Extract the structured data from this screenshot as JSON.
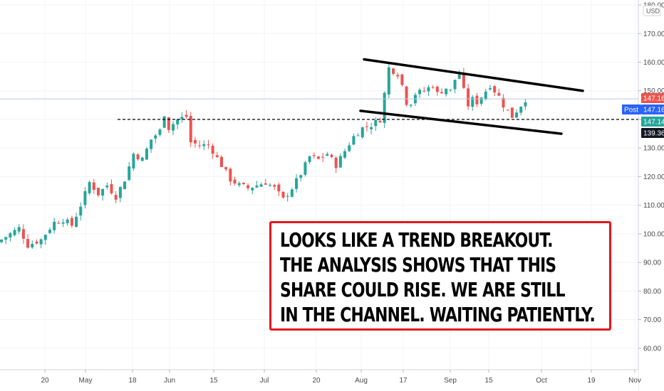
{
  "chart_data": {
    "type": "candlestick",
    "currency": "USD",
    "ylim": [
      55,
      181
    ],
    "y_ticks": [
      60,
      70,
      80,
      90,
      100,
      110,
      120,
      130,
      140,
      150,
      160,
      170,
      180
    ],
    "y_tick_labels": [
      "60.00",
      "70.00",
      "80.00",
      "90.00",
      "100.00",
      "110.00",
      "120.00",
      "130.00",
      "140.00",
      "150.00",
      "160.00",
      "170.00",
      "180.00"
    ],
    "x_tick_labels": [
      "20",
      "May",
      "18",
      "Jun",
      "15",
      "Jul",
      "20",
      "Aug",
      "17",
      "Sep",
      "15",
      "Oct",
      "19",
      "Nov"
    ],
    "price_labels": [
      {
        "text": "147.16",
        "value": 147.16,
        "color": "#ef5350"
      },
      {
        "text": "Post",
        "value": 147.16,
        "color": "#2962ff"
      },
      {
        "text": "147.16",
        "value": 147.16,
        "color": "#2962ff"
      },
      {
        "text": "147.14",
        "value": 147.14,
        "color": "#26a69a"
      },
      {
        "text": "139.36",
        "value": 139.36,
        "color": "#131722"
      }
    ],
    "horizontal_line": {
      "value": 140,
      "style": "dashed"
    },
    "current_line": {
      "value": 147.16
    },
    "trendlines": [
      {
        "from": {
          "x": "2020-08-03",
          "y": 161
        },
        "to": {
          "x": "2020-10-16",
          "y": 150
        }
      },
      {
        "from": {
          "x": "2020-08-01",
          "y": 143
        },
        "to": {
          "x": "2020-10-14",
          "y": 135
        }
      }
    ],
    "up_color": "#26a69a",
    "down_color": "#ef5350",
    "close_anchors": [
      [
        0,
        98
      ],
      [
        4,
        102
      ],
      [
        6,
        96
      ],
      [
        9,
        98
      ],
      [
        12,
        104
      ],
      [
        14,
        105
      ],
      [
        16,
        103
      ],
      [
        18,
        110
      ],
      [
        20,
        118
      ],
      [
        22,
        114
      ],
      [
        24,
        117
      ],
      [
        26,
        113
      ],
      [
        28,
        119
      ],
      [
        30,
        128
      ],
      [
        32,
        126
      ],
      [
        34,
        133
      ],
      [
        36,
        136
      ],
      [
        37,
        142
      ],
      [
        38,
        137
      ],
      [
        40,
        140
      ],
      [
        42,
        141
      ],
      [
        43,
        132
      ],
      [
        45,
        131
      ],
      [
        47,
        131
      ],
      [
        48,
        129
      ],
      [
        50,
        124
      ],
      [
        52,
        119
      ],
      [
        54,
        117
      ],
      [
        56,
        116
      ],
      [
        58,
        117
      ],
      [
        60,
        118
      ],
      [
        62,
        116
      ],
      [
        64,
        112
      ],
      [
        66,
        116
      ],
      [
        68,
        121
      ],
      [
        70,
        127
      ],
      [
        72,
        126
      ],
      [
        74,
        128
      ],
      [
        76,
        124
      ],
      [
        78,
        129
      ],
      [
        80,
        134
      ],
      [
        82,
        137
      ],
      [
        84,
        138
      ],
      [
        86,
        140
      ],
      [
        87,
        149
      ],
      [
        88,
        158
      ],
      [
        89,
        157
      ],
      [
        90,
        156
      ],
      [
        91,
        152
      ],
      [
        92,
        146
      ],
      [
        93,
        146
      ],
      [
        94,
        149
      ],
      [
        96,
        150
      ],
      [
        98,
        152
      ],
      [
        99,
        149
      ],
      [
        101,
        151
      ],
      [
        102,
        150
      ],
      [
        103,
        154
      ],
      [
        104,
        156
      ],
      [
        105,
        150
      ],
      [
        106,
        145
      ],
      [
        107,
        147
      ],
      [
        108,
        146
      ],
      [
        109,
        148
      ],
      [
        111,
        152
      ],
      [
        112,
        150
      ],
      [
        113,
        148
      ],
      [
        114,
        145
      ],
      [
        115,
        143
      ],
      [
        116,
        141
      ],
      [
        117,
        143
      ],
      [
        118,
        145
      ],
      [
        119,
        147
      ]
    ]
  },
  "annotation": {
    "lines": [
      "LOOKS LIKE A TREND BREAKOUT.",
      "THE ANALYSIS SHOWS THAT THIS",
      "SHARE COULD RISE. WE ARE STILL",
      "IN THE CHANNEL. WAITING PATIENTLY."
    ]
  }
}
